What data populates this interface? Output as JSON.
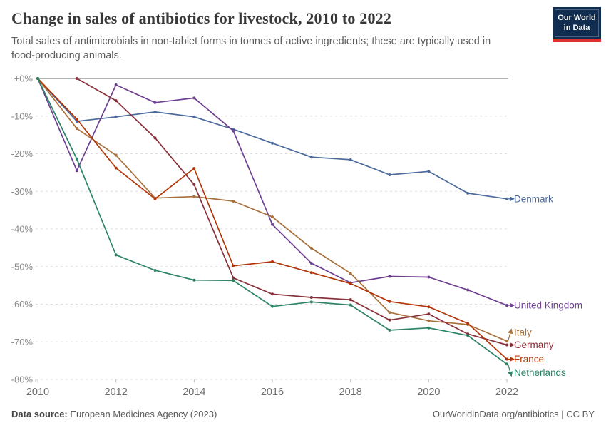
{
  "header": {
    "title": "Change in sales of antibiotics for livestock, 2010 to 2022",
    "subtitle": "Total sales of antimicrobials in non-tablet forms in tonnes of active ingredients; these are typically used in food-producing animals."
  },
  "logo": {
    "line1": "Our World",
    "line2": "in Data",
    "bg_color": "#102D50",
    "bar_color": "#E0322C"
  },
  "footer": {
    "source_label": "Data source:",
    "source_value": " European Medicines Agency (2023)",
    "credit": "OurWorldinData.org/antibiotics | CC BY"
  },
  "chart_data": {
    "type": "line",
    "title": "Change in sales of antibiotics for livestock, 2010 to 2022",
    "x": [
      2010,
      2011,
      2012,
      2013,
      2014,
      2015,
      2016,
      2017,
      2018,
      2019,
      2020,
      2021,
      2022
    ],
    "xlim": [
      2010,
      2022
    ],
    "ylim": [
      0,
      -80
    ],
    "x_ticks": [
      2010,
      2012,
      2014,
      2016,
      2018,
      2020,
      2022
    ],
    "y_ticks": [
      {
        "label": "+0%",
        "value": 0
      },
      {
        "label": "-10%",
        "value": -10
      },
      {
        "label": "-20%",
        "value": -20
      },
      {
        "label": "-30%",
        "value": -30
      },
      {
        "label": "-40%",
        "value": -40
      },
      {
        "label": "-50%",
        "value": -50
      },
      {
        "label": "-60%",
        "value": -60
      },
      {
        "label": "-70%",
        "value": -70
      },
      {
        "label": "-80%",
        "value": -80
      }
    ],
    "grid": "horizontal-dashed",
    "legend_position": "right-line-end-labels",
    "series": [
      {
        "name": "Denmark",
        "color": "#4C6A9C",
        "label_dy": 0,
        "values": [
          0,
          -11.4,
          -10.2,
          -8.9,
          -10.2,
          -13.5,
          -17.2,
          -20.9,
          -21.6,
          -25.6,
          -24.7,
          -30.5,
          -32.0
        ]
      },
      {
        "name": "United Kingdom",
        "color": "#6D3E91",
        "label_dy": 0,
        "values": [
          0,
          -24.5,
          -1.7,
          -6.4,
          -5.2,
          -13.9,
          -38.8,
          -49.1,
          -54.3,
          -52.6,
          -52.8,
          -56.2,
          -60.3
        ]
      },
      {
        "name": "Italy",
        "color": "#A9713B",
        "label_dy": -12,
        "values": [
          0,
          -13.3,
          -20.4,
          -31.8,
          -31.4,
          -32.6,
          -36.8,
          -45.1,
          -51.8,
          -62.2,
          -64.4,
          -65.4,
          -69.8
        ]
      },
      {
        "name": "Germany",
        "color": "#883039",
        "label_dy": 0,
        "values": [
          null,
          0,
          -5.9,
          -15.8,
          -28.2,
          -53.0,
          -57.3,
          -58.2,
          -58.8,
          -64.2,
          -62.6,
          -67.9,
          -70.8
        ]
      },
      {
        "name": "France",
        "color": "#B13507",
        "label_dy": 0,
        "values": [
          0,
          -10.8,
          -23.8,
          -32.0,
          -23.9,
          -49.8,
          -48.7,
          -51.6,
          -54.5,
          -59.3,
          -60.7,
          -65.1,
          -74.6
        ]
      },
      {
        "name": "Netherlands",
        "color": "#2C8465",
        "label_dy": 12,
        "values": [
          0,
          -21.4,
          -46.9,
          -51.0,
          -53.6,
          -53.7,
          -60.6,
          -59.4,
          -60.2,
          -66.9,
          -66.3,
          -68.3,
          -75.9
        ]
      }
    ]
  }
}
